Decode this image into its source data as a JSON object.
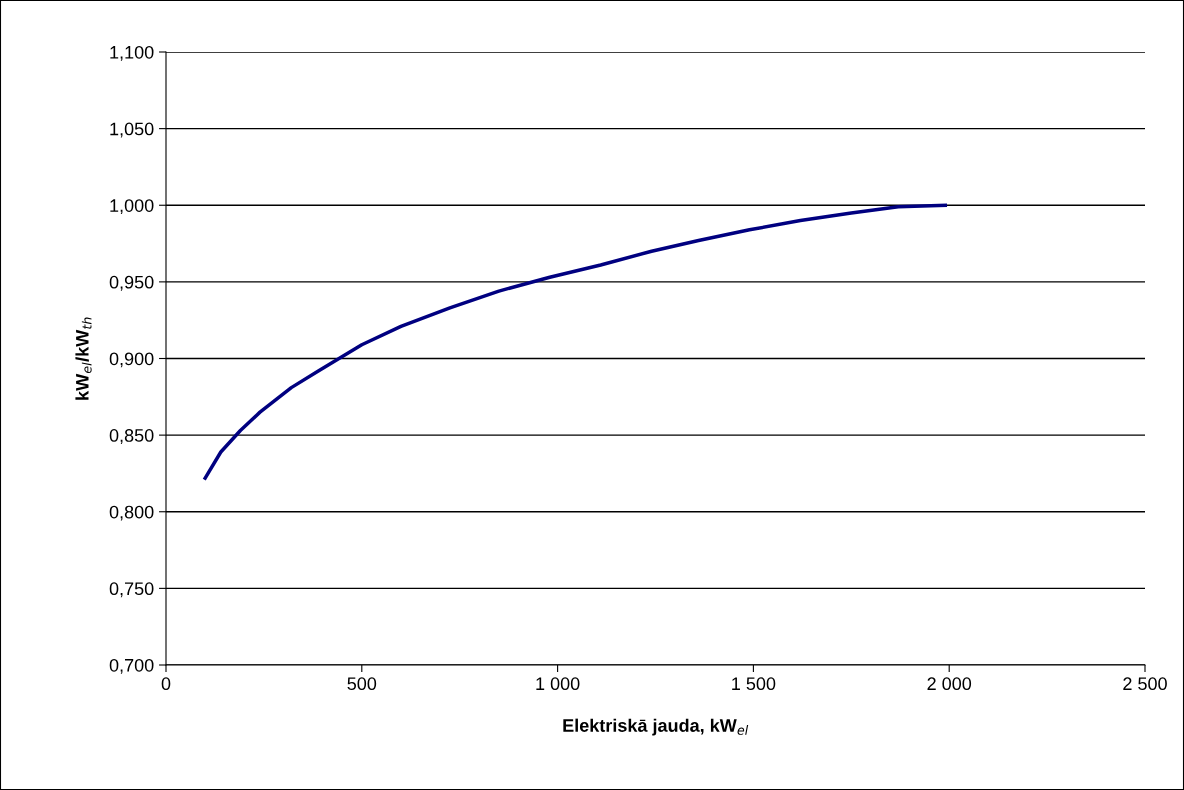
{
  "chart_data": {
    "type": "line",
    "xlabel": "Elektriskā jauda, kW$_{el}$",
    "ylabel": "kW$_{el}$/kW$_{th}$",
    "x": [
      100,
      140,
      190,
      240,
      320,
      390,
      500,
      600,
      725,
      850,
      980,
      1110,
      1240,
      1360,
      1490,
      1620,
      1750,
      1870,
      1990
    ],
    "series": [
      {
        "color": "#000080",
        "values": [
          0.822,
          0.839,
          0.853,
          0.865,
          0.881,
          0.892,
          0.909,
          0.921,
          0.933,
          0.944,
          0.953,
          0.961,
          0.97,
          0.977,
          0.984,
          0.99,
          0.995,
          0.999,
          1.0
        ]
      }
    ],
    "xlim": [
      0,
      2500
    ],
    "xticks": [
      0,
      500,
      {
        "value": 1000,
        "label": "1 000"
      },
      {
        "value": 1500,
        "label": "1 500"
      },
      {
        "value": 2000,
        "label": "2 000"
      },
      {
        "value": 2500,
        "label": "2 500"
      }
    ],
    "ylim": [
      0.7,
      1.1
    ],
    "yticks": [
      {
        "value": 0.7,
        "label": "0,700"
      },
      {
        "value": 0.75,
        "label": "0,750"
      },
      {
        "value": 0.8,
        "label": "0,800"
      },
      {
        "value": 0.85,
        "label": "0,850"
      },
      {
        "value": 0.9,
        "label": "0,900"
      },
      {
        "value": 0.95,
        "label": "0,950"
      },
      {
        "value": 1.0,
        "label": "1,000"
      },
      {
        "value": 1.05,
        "label": "1,050"
      },
      {
        "value": 1.1,
        "label": "1,100"
      }
    ],
    "grid": "y",
    "line_style": "solid"
  }
}
